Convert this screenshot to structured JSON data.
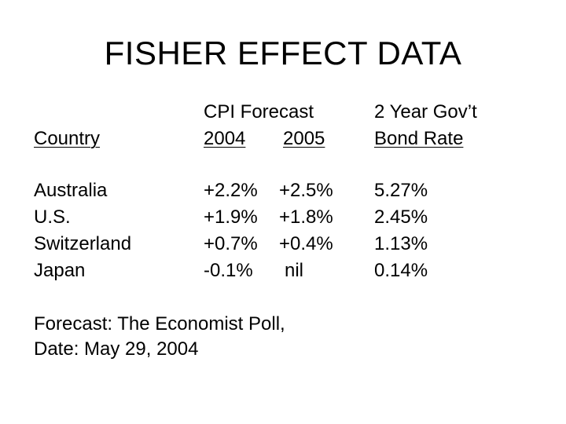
{
  "title": "FISHER EFFECT DATA",
  "table": {
    "headers": {
      "country": "Country",
      "cpi_forecast": "CPI Forecast",
      "year_2004": "2004",
      "year_2005": "2005",
      "bond_line1": "2 Year Gov’t",
      "bond_line2": "Bond Rate"
    },
    "rows": [
      {
        "country": "Australia",
        "cpi_2004": "+2.2%",
        "cpi_2005": "+2.5%",
        "bond_rate": "5.27%"
      },
      {
        "country": "U.S.",
        "cpi_2004": "+1.9%",
        "cpi_2005": "+1.8%",
        "bond_rate": "2.45%"
      },
      {
        "country": "Switzerland",
        "cpi_2004": "+0.7%",
        "cpi_2005": "+0.4%",
        "bond_rate": "1.13%"
      },
      {
        "country": "Japan",
        "cpi_2004": "-0.1%",
        "cpi_2005": "nil",
        "bond_rate": "0.14%"
      }
    ]
  },
  "footer": {
    "line1": "Forecast:  The Economist Poll,",
    "line2": "Date: May 29, 2004"
  }
}
